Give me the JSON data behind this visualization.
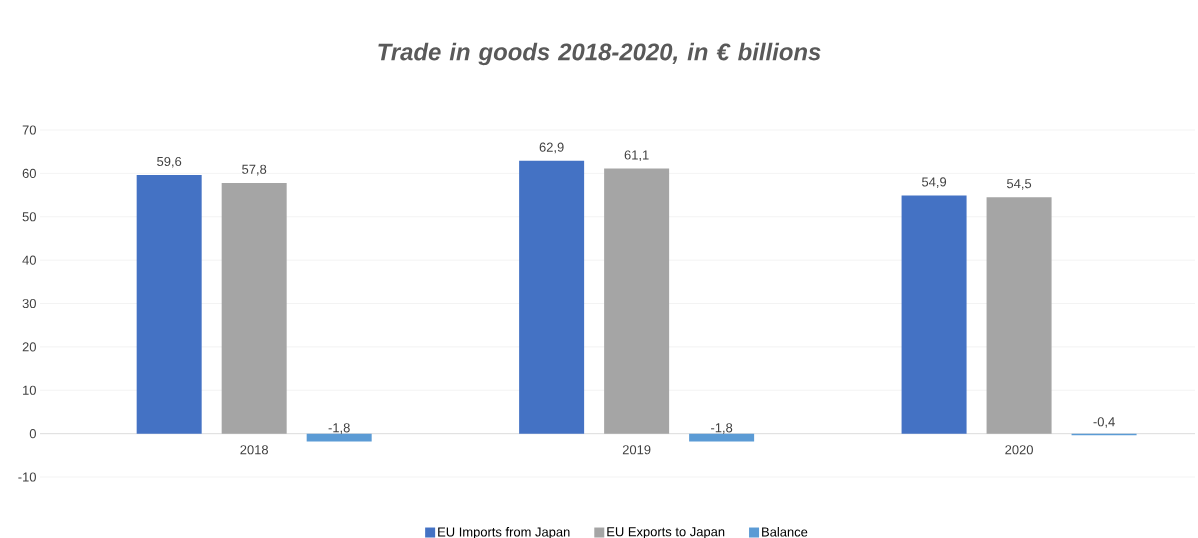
{
  "chart_data": {
    "type": "bar",
    "title": "Trade in goods 2018-2020, in € billions",
    "categories": [
      "2018",
      "2019",
      "2020"
    ],
    "series": [
      {
        "name": "EU Imports from Japan",
        "color": "#4472c4",
        "values": [
          59.6,
          62.9,
          54.9
        ],
        "value_labels": [
          "59,6",
          "62,9",
          "54,9"
        ]
      },
      {
        "name": "EU Exports to Japan",
        "color": "#a5a5a5",
        "values": [
          57.8,
          61.1,
          54.5
        ],
        "value_labels": [
          "57,8",
          "61,1",
          "54,5"
        ]
      },
      {
        "name": "Balance",
        "color": "#5b9bd5",
        "values": [
          -1.8,
          -1.8,
          -0.4
        ],
        "value_labels": [
          "-1,8",
          "-1,8",
          "-0,4"
        ]
      }
    ],
    "ylim": [
      -10,
      70
    ],
    "yticks": [
      -10,
      0,
      10,
      20,
      30,
      40,
      50,
      60,
      70
    ],
    "grid": "y",
    "legend": "bottom"
  }
}
